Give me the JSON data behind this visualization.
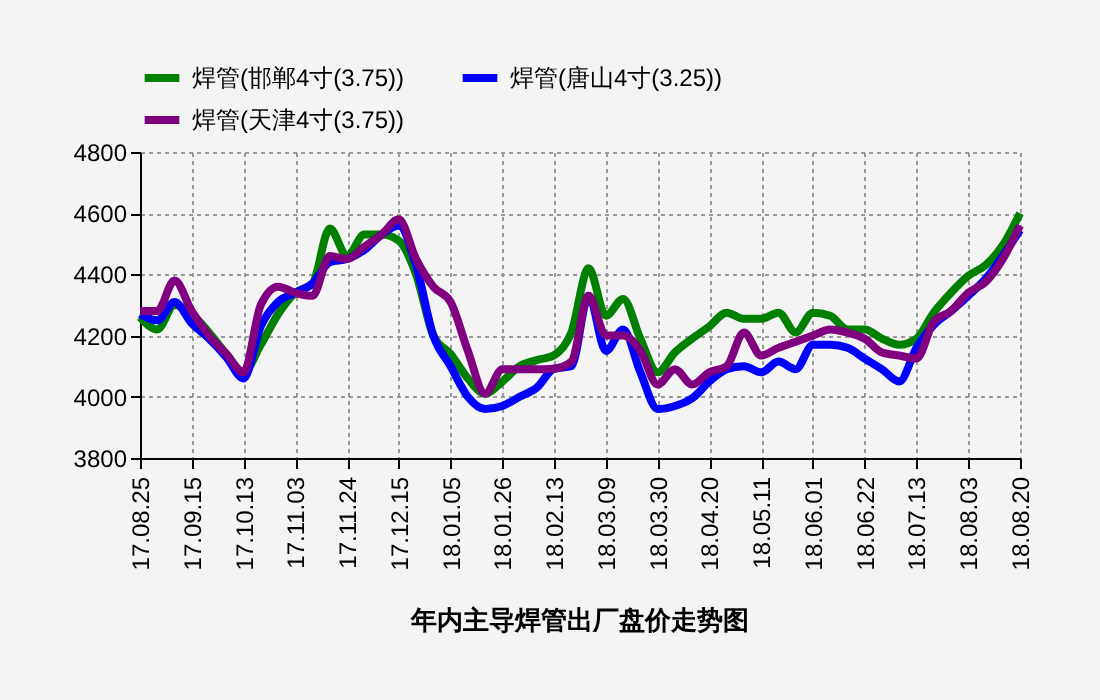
{
  "chart_data": {
    "type": "line",
    "title": "年内主导焊管出厂盘价走势图",
    "categories": [
      "17.08.25",
      null,
      null,
      "17.09.15",
      null,
      null,
      "17.10.13",
      null,
      null,
      "17.11.03",
      null,
      null,
      "17.11.24",
      null,
      null,
      "17.12.15",
      null,
      null,
      "18.01.05",
      null,
      null,
      "18.01.26",
      null,
      null,
      "18.02.13",
      null,
      null,
      "18.03.09",
      null,
      null,
      "18.03.30",
      null,
      null,
      "18.04.20",
      null,
      null,
      "18.05.11",
      null,
      null,
      "18.06.01",
      null,
      null,
      "18.06.22",
      null,
      null,
      "18.07.13",
      null,
      null,
      "18.08.03",
      null,
      null,
      "18.08.20"
    ],
    "series": [
      {
        "name": "焊管(邯郸4寸(3.75))",
        "color": "#008000",
        "values": [
          4260,
          4220,
          4300,
          4270,
          4210,
          4140,
          4080,
          4170,
          4270,
          4340,
          4370,
          4550,
          4460,
          4530,
          4530,
          4510,
          4400,
          4200,
          4140,
          4060,
          4010,
          4050,
          4100,
          4120,
          4136,
          4210,
          4420,
          4265,
          4320,
          4190,
          4080,
          4145,
          4190,
          4230,
          4275,
          4255,
          4255,
          4275,
          4210,
          4275,
          4265,
          4220,
          4220,
          4190,
          4170,
          4190,
          4275,
          4340,
          4395,
          4430,
          4495,
          4600
        ]
      },
      {
        "name": "焊管(唐山4寸(3.25))",
        "color": "#0000ff",
        "values": [
          4270,
          4250,
          4310,
          4240,
          4190,
          4130,
          4060,
          4230,
          4310,
          4340,
          4370,
          4440,
          4450,
          4480,
          4530,
          4560,
          4430,
          4200,
          4100,
          4000,
          3960,
          3970,
          4000,
          4030,
          4092,
          4100,
          4330,
          4150,
          4220,
          4080,
          3960,
          3970,
          3995,
          4050,
          4090,
          4100,
          4080,
          4115,
          4090,
          4170,
          4170,
          4160,
          4125,
          4090,
          4050,
          4160,
          4235,
          4280,
          4330,
          4385,
          4460,
          4545
        ]
      },
      {
        "name": "焊管(天津4寸(3.75))",
        "color": "#800080",
        "values": [
          4280,
          4280,
          4380,
          4280,
          4200,
          4140,
          4080,
          4300,
          4360,
          4340,
          4330,
          4460,
          4450,
          4490,
          4530,
          4580,
          4450,
          4360,
          4310,
          4150,
          4010,
          4090,
          4090,
          4090,
          4092,
          4115,
          4330,
          4200,
          4200,
          4150,
          4040,
          4090,
          4040,
          4080,
          4100,
          4210,
          4135,
          4160,
          4180,
          4200,
          4220,
          4210,
          4190,
          4145,
          4135,
          4125,
          4245,
          4280,
          4340,
          4375,
          4450,
          4560
        ]
      }
    ],
    "ylim": [
      3800,
      4800
    ],
    "yticks": [
      3800,
      4000,
      4200,
      4400,
      4600,
      4800
    ],
    "grid": true,
    "legend": "top",
    "marker": "none",
    "line_style": "solid"
  }
}
